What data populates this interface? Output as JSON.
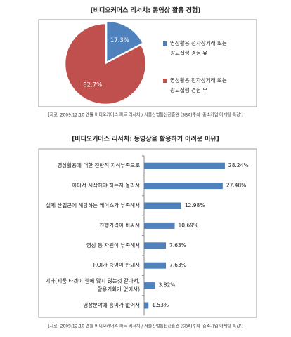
{
  "chart_data": [
    {
      "type": "pie",
      "title": "[비디오커머스 리서치: 동영상 활용 경험]",
      "categories": [
        [
          "영상활용 전자상거래 또는",
          "광고집행 경험 유"
        ],
        [
          "영상활용 전자상거래 또는",
          "광고집행 경험 무"
        ]
      ],
      "values": [
        17.3,
        82.7
      ],
      "value_labels": [
        "17.3%",
        "82.7%"
      ],
      "colors": [
        "#4f81bd",
        "#c0504d"
      ],
      "source": "[자료: 2009.12.10 엔틀 비디오커머스 파트 리서치 / 서울산업통산진흥원 (SBA)주최 '중소기업 마케팅 특강']"
    },
    {
      "type": "bar",
      "title": "[비디오커머스 리서치: 동영상을 활용하기 어려운 이유]",
      "categories": [
        [
          "영상활용에 대한 전반적 지식부족으로"
        ],
        [
          "어디서 시작해야 하는지 몰라서"
        ],
        [
          "실제 산업군에 해당하는 케이스가 부족해서"
        ],
        [
          "진행가격이 비싸서"
        ],
        [
          "영상 등 자원이 부족해서"
        ],
        [
          "ROI가 증명이 안돼서"
        ],
        [
          "기타(제품 타겟이 웹에 맞지 않는것 같아서,",
          "활용기회가 없어서)"
        ],
        [
          "영상분야에 흥미가 없어서"
        ]
      ],
      "values": [
        28.24,
        27.48,
        12.98,
        10.69,
        7.63,
        7.63,
        3.82,
        1.53
      ],
      "value_labels": [
        "28.24%",
        "27.48%",
        "12.98%",
        "10.69%",
        "7.63%",
        "7.63%",
        "3.82%",
        "1.53%"
      ],
      "color": "#4f81bd",
      "source": "[자료: 2009.12.10 엔틀 비디오커머스 파트 리서치 / 서울산업통산진흥원 (SBA)주최 '중소기업 마케팅 특강']"
    }
  ]
}
